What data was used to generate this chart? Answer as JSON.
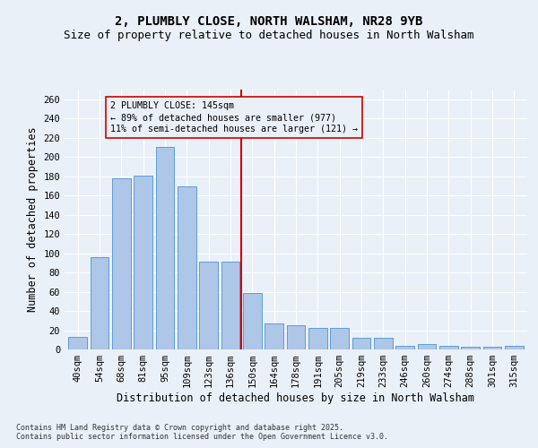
{
  "title_line1": "2, PLUMBLY CLOSE, NORTH WALSHAM, NR28 9YB",
  "title_line2": "Size of property relative to detached houses in North Walsham",
  "xlabel": "Distribution of detached houses by size in North Walsham",
  "ylabel": "Number of detached properties",
  "footnote": "Contains HM Land Registry data © Crown copyright and database right 2025.\nContains public sector information licensed under the Open Government Licence v3.0.",
  "categories": [
    "40sqm",
    "54sqm",
    "68sqm",
    "81sqm",
    "95sqm",
    "109sqm",
    "123sqm",
    "136sqm",
    "150sqm",
    "164sqm",
    "178sqm",
    "191sqm",
    "205sqm",
    "219sqm",
    "233sqm",
    "246sqm",
    "260sqm",
    "274sqm",
    "288sqm",
    "301sqm",
    "315sqm"
  ],
  "values": [
    13,
    96,
    178,
    181,
    210,
    169,
    91,
    91,
    59,
    27,
    25,
    22,
    22,
    12,
    12,
    4,
    6,
    4,
    3,
    3,
    4
  ],
  "bar_color": "#aec6e8",
  "bar_edge_color": "#5a9fd4",
  "vline_color": "#cc0000",
  "annotation_text": "2 PLUMBLY CLOSE: 145sqm\n← 89% of detached houses are smaller (977)\n11% of semi-detached houses are larger (121) →",
  "annotation_box_color": "#cc0000",
  "ylim": [
    0,
    270
  ],
  "yticks": [
    0,
    20,
    40,
    60,
    80,
    100,
    120,
    140,
    160,
    180,
    200,
    220,
    240,
    260
  ],
  "bg_color": "#eaf0f8",
  "grid_color": "#ffffff",
  "title_fontsize": 10,
  "subtitle_fontsize": 9,
  "axis_label_fontsize": 8.5,
  "tick_fontsize": 7.5,
  "footnote_fontsize": 6
}
